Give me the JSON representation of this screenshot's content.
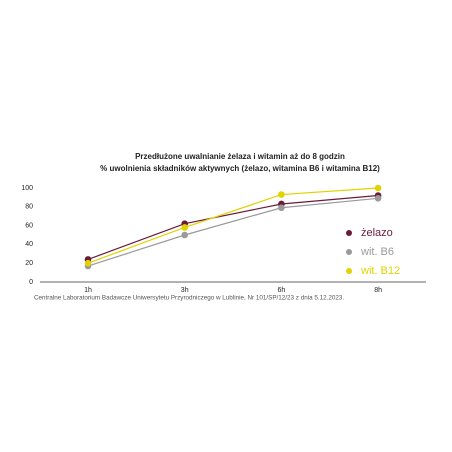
{
  "chart_data": {
    "type": "line",
    "title": "Przedłużone uwalnianie żelaza i witamin aż do 8 godzin",
    "subtitle": "% uwolnienia składników aktywnych (żelazo, witamina B6 i witamina B12)",
    "categories": [
      "1h",
      "3h",
      "6h",
      "8h"
    ],
    "series": [
      {
        "name": "żelazo",
        "color": "#6b1a3a",
        "values": [
          24,
          62,
          83,
          92
        ]
      },
      {
        "name": "wit. B6",
        "color": "#9a9a9a",
        "values": [
          17,
          50,
          79,
          89
        ]
      },
      {
        "name": "wit. B12",
        "color": "#e2d200",
        "values": [
          20,
          58,
          93,
          100
        ]
      }
    ],
    "ylim": [
      0,
      100
    ],
    "yticks": [
      0,
      20,
      40,
      60,
      80,
      100
    ],
    "grid": false,
    "legend": "right",
    "note": "Centralne Laboratorium Badawcze Uniwersytetu Przyrodniczego w Lublinie, Nr 101/SP/12/23 z dnia 5.12.2023."
  }
}
